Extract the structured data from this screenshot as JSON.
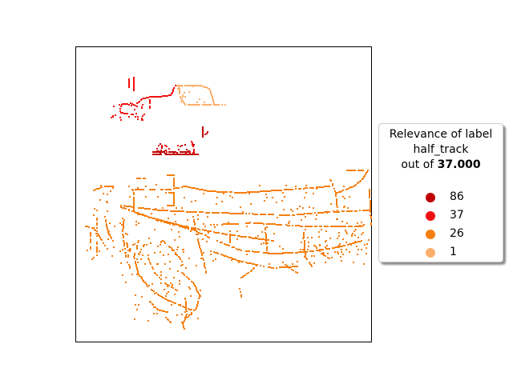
{
  "legend": {
    "title_line1": "Relevance of label",
    "title_line2": "half_track",
    "title_prefix": "out of ",
    "title_value": "37.000",
    "items": [
      {
        "label": "86",
        "color": "#c00000"
      },
      {
        "label": "37",
        "color": "#f01010"
      },
      {
        "label": "26",
        "color": "#f57f10"
      },
      {
        "label": "1",
        "color": "#fdae6b"
      }
    ]
  },
  "colors": {
    "dark_red": "#c00000",
    "red": "#f01010",
    "orange": "#f57f10",
    "light_orange": "#fdae6b",
    "frame": "#000000"
  }
}
